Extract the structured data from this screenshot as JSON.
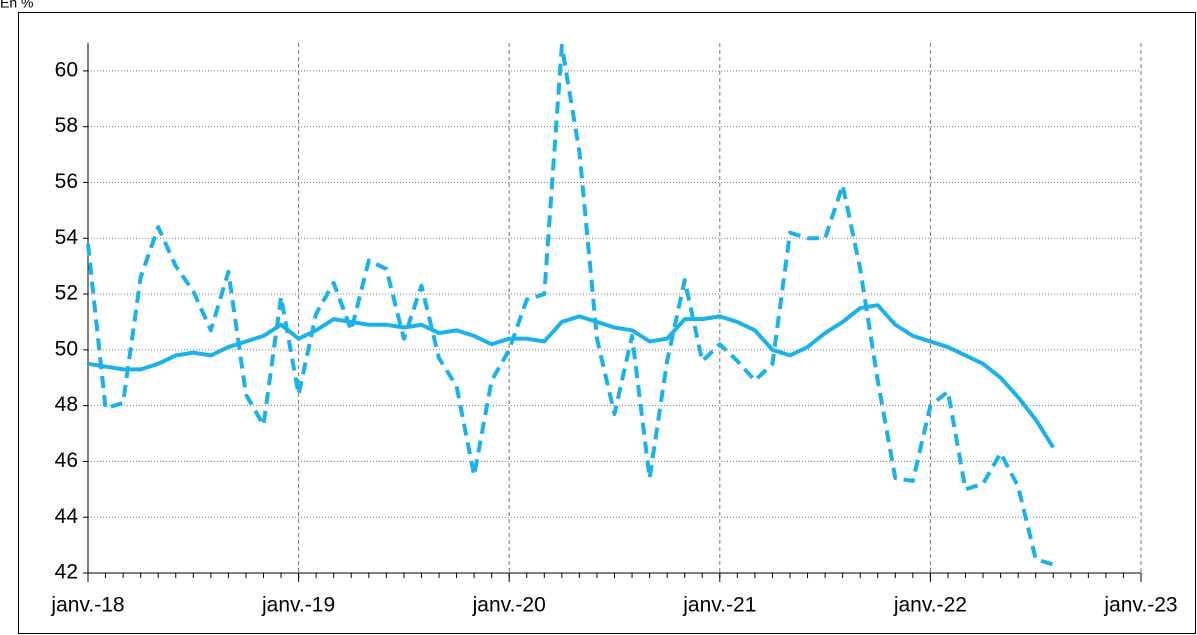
{
  "chart_data": {
    "type": "line",
    "ylabel": "En %",
    "x": [
      0,
      1,
      2,
      3,
      4,
      5,
      6,
      7,
      8,
      9,
      10,
      11,
      12,
      13,
      14,
      15,
      16,
      17,
      18,
      19,
      20,
      21,
      22,
      23,
      24,
      25,
      26,
      27,
      28,
      29,
      30,
      31,
      32,
      33,
      34,
      35,
      36,
      37,
      38,
      39,
      40,
      41,
      42,
      43,
      44,
      45,
      46,
      47,
      48,
      49,
      50,
      51,
      52,
      53,
      54,
      55
    ],
    "xlim": [
      0,
      60
    ],
    "xticks": [
      {
        "value": 0,
        "label": "janv.-18"
      },
      {
        "value": 12,
        "label": "janv.-19"
      },
      {
        "value": 24,
        "label": "janv.-20"
      },
      {
        "value": 36,
        "label": "janv.-21"
      },
      {
        "value": 48,
        "label": "janv.-22"
      },
      {
        "value": 60,
        "label": "janv.-23"
      }
    ],
    "ylim": [
      42,
      61
    ],
    "yticks": [
      42,
      44,
      46,
      48,
      50,
      52,
      54,
      56,
      58,
      60
    ],
    "grid": true,
    "series": [
      {
        "color": "#1ab2e8",
        "style": "dashed",
        "values": [
          53.8,
          47.9,
          48.1,
          52.6,
          54.4,
          53.0,
          52.1,
          50.7,
          52.8,
          48.4,
          47.3,
          51.9,
          48.4,
          51.3,
          52.4,
          50.7,
          53.2,
          52.9,
          50.4,
          52.3,
          49.7,
          48.7,
          45.5,
          48.9,
          50.0,
          51.8,
          52.0,
          60.9,
          57.1,
          50.4,
          47.7,
          50.5,
          45.4,
          49.6,
          52.5,
          49.6,
          50.2,
          49.6,
          48.9,
          49.5,
          54.2,
          54.0,
          54.0,
          55.9,
          52.9,
          48.9,
          45.4,
          45.3,
          48.0,
          48.5,
          45.0,
          45.2,
          46.3,
          45.1,
          42.5,
          42.3
        ]
      },
      {
        "color": "#1ab2e8",
        "style": "solid",
        "values": [
          49.5,
          49.4,
          49.3,
          49.3,
          49.5,
          49.8,
          49.9,
          49.8,
          50.1,
          50.3,
          50.5,
          50.9,
          50.4,
          50.7,
          51.1,
          51.0,
          50.9,
          50.9,
          50.8,
          50.9,
          50.6,
          50.7,
          50.5,
          50.2,
          50.4,
          50.4,
          50.3,
          51.0,
          51.2,
          51.0,
          50.8,
          50.7,
          50.3,
          50.4,
          51.1,
          51.1,
          51.2,
          51.0,
          50.7,
          50.0,
          49.8,
          50.1,
          50.6,
          51.0,
          51.5,
          51.6,
          50.9,
          50.5,
          50.3,
          50.1,
          49.8,
          49.5,
          49.0,
          48.3,
          47.5,
          46.5
        ]
      }
    ]
  }
}
